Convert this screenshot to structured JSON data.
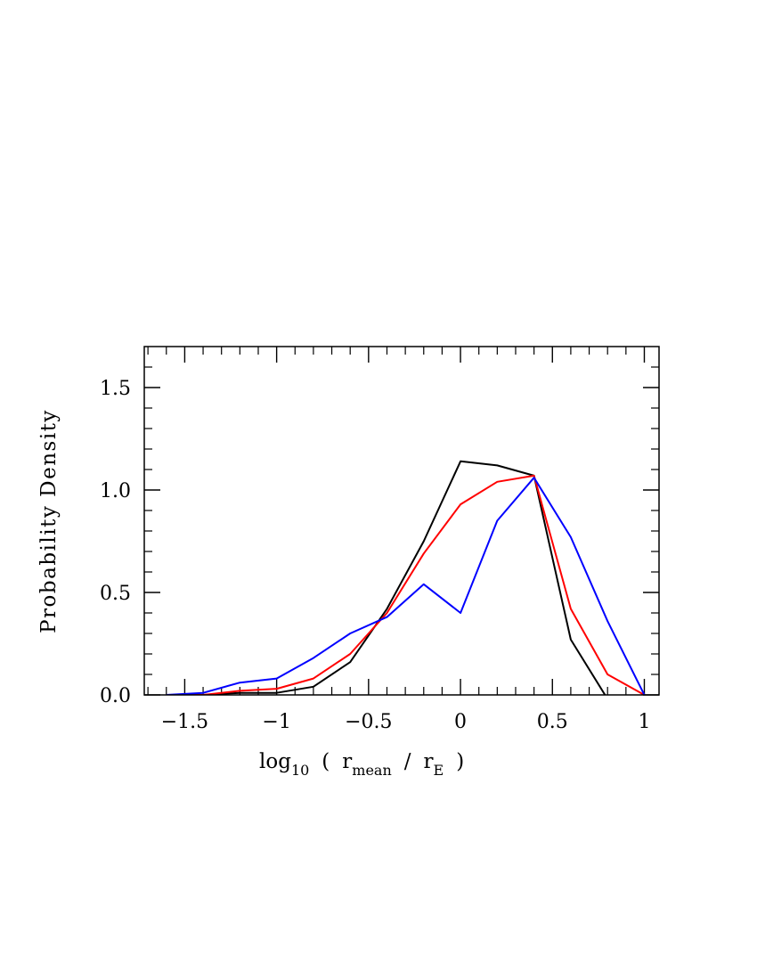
{
  "chart_data": {
    "type": "line",
    "title": "",
    "xlabel": {
      "main": "log",
      "main_sub": "10",
      "open": "(",
      "r1": "r",
      "r1_sub": "mean",
      "slash": "/",
      "r2": "r",
      "r2_sub": "E",
      "close": ")"
    },
    "ylabel": "Probability Density",
    "xlim": [
      -1.72,
      1.08
    ],
    "ylim": [
      0,
      1.7
    ],
    "xticks": [
      -1.5,
      -1,
      -0.5,
      0,
      0.5,
      1
    ],
    "xtick_labels": [
      "−1.5",
      "−1",
      "−0.5",
      "0",
      "0.5",
      "1"
    ],
    "yticks": [
      0,
      0.5,
      1.0,
      1.5
    ],
    "ytick_labels": [
      "0.0",
      "0.5",
      "1.0",
      "1.5"
    ],
    "x": [
      -1.6,
      -1.4,
      -1.2,
      -1.0,
      -0.8,
      -0.6,
      -0.4,
      -0.2,
      0.0,
      0.2,
      0.4,
      0.6,
      0.8,
      1.0
    ],
    "series": [
      {
        "name": "black",
        "color": "#000000",
        "values": [
          0.0,
          0.0,
          0.01,
          0.01,
          0.04,
          0.16,
          0.42,
          0.75,
          1.14,
          1.12,
          1.07,
          0.27,
          -0.02,
          -0.02
        ]
      },
      {
        "name": "red",
        "color": "#ff0000",
        "values": [
          0.0,
          0.0,
          0.02,
          0.03,
          0.08,
          0.2,
          0.4,
          0.69,
          0.93,
          1.04,
          1.07,
          0.42,
          0.1,
          0.0
        ]
      },
      {
        "name": "blue",
        "color": "#0000ff",
        "values": [
          0.0,
          0.01,
          0.06,
          0.08,
          0.18,
          0.3,
          0.38,
          0.54,
          0.4,
          0.85,
          1.06,
          0.77,
          0.36,
          0.0
        ]
      }
    ]
  }
}
